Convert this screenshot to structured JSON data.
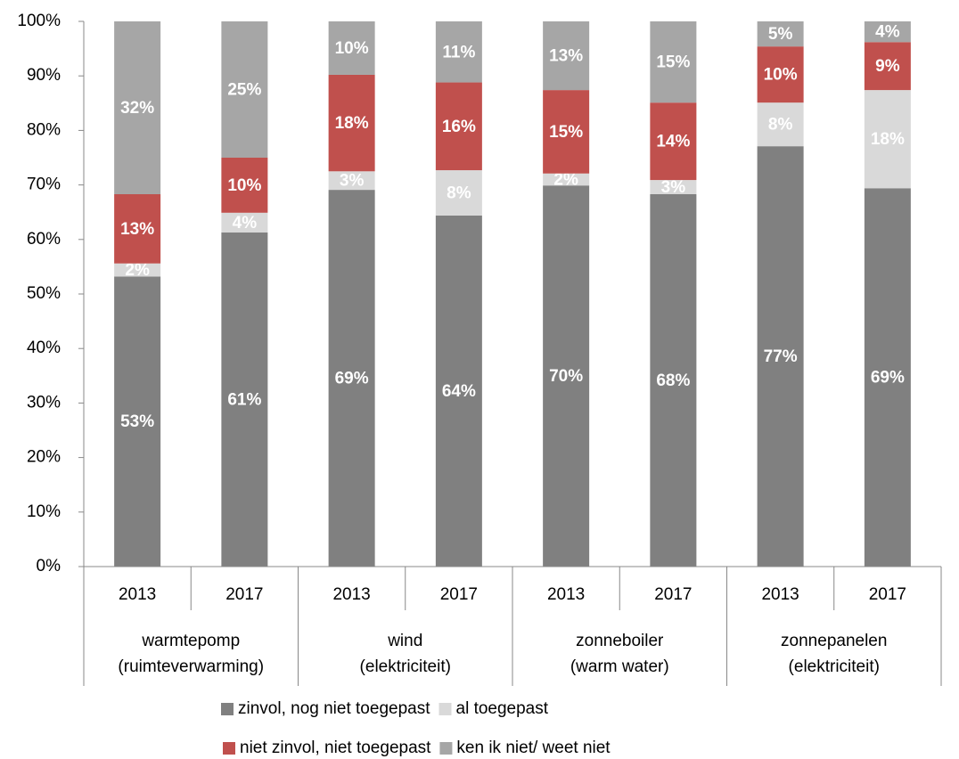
{
  "chart_data": {
    "type": "stacked_bar",
    "categories": [
      "2013",
      "2017",
      "2013",
      "2017",
      "2013",
      "2017",
      "2013",
      "2017"
    ],
    "groups": [
      [
        "warmtepomp",
        "(ruimteverwarming)"
      ],
      [
        "wind",
        "(elektriciteit)"
      ],
      [
        "zonneboiler",
        "(warm water)"
      ],
      [
        "zonnepanelen",
        "(elektriciteit)"
      ]
    ],
    "series": [
      {
        "name": "zinvol, nog niet toegepast",
        "color": "#808080",
        "values": [
          53.2,
          61.3,
          69.1,
          64.4,
          69.9,
          68.3,
          77.1,
          69.4
        ],
        "value_labels": [
          "53%",
          "61%",
          "69%",
          "64%",
          "70%",
          "68%",
          "77%",
          "69%"
        ]
      },
      {
        "name": "al toegepast",
        "color": "#d9d9d9",
        "values": [
          2.4,
          3.6,
          3.4,
          8.3,
          2.2,
          2.6,
          8.0,
          18.0
        ],
        "value_labels": [
          "2%",
          "4%",
          "3%",
          "8%",
          "2%",
          "3%",
          "8%",
          "18%"
        ]
      },
      {
        "name": "niet zinvol, niet toegepast",
        "color": "#c0504d",
        "values": [
          12.7,
          10.1,
          17.7,
          16.1,
          15.3,
          14.2,
          10.3,
          8.8
        ],
        "value_labels": [
          "13%",
          "10%",
          "18%",
          "16%",
          "15%",
          "14%",
          "10%",
          "9%"
        ]
      },
      {
        "name": "ken ik niet/ weet niet",
        "color": "#a6a6a6",
        "values": [
          31.7,
          25.0,
          9.8,
          11.2,
          12.6,
          14.9,
          4.6,
          3.8
        ],
        "value_labels": [
          "32%",
          "25%",
          "10%",
          "11%",
          "13%",
          "15%",
          "5%",
          "4%"
        ]
      }
    ],
    "ylim": [
      0,
      100
    ],
    "yticks": [
      {
        "value": 0,
        "label": "0%"
      },
      {
        "value": 10,
        "label": "10%"
      },
      {
        "value": 20,
        "label": "20%"
      },
      {
        "value": 30,
        "label": "30%"
      },
      {
        "value": 40,
        "label": "40%"
      },
      {
        "value": 50,
        "label": "50%"
      },
      {
        "value": 60,
        "label": "60%"
      },
      {
        "value": 70,
        "label": "70%"
      },
      {
        "value": 80,
        "label": "80%"
      },
      {
        "value": 90,
        "label": "90%"
      },
      {
        "value": 100,
        "label": "100%"
      }
    ],
    "legend": "bottom"
  }
}
